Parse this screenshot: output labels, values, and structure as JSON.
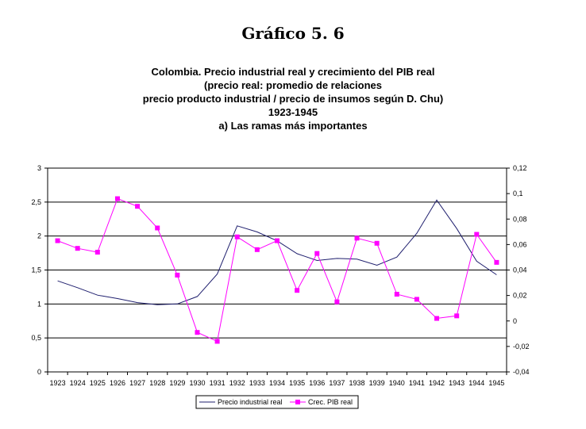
{
  "header": {
    "figure_title": "Gráfico 5. 6",
    "subtitle_lines": [
      "Colombia. Precio industrial real y crecimiento del PIB real",
      "(precio real: promedio de relaciones",
      "precio producto industrial / precio de insumos según D. Chu)",
      "1923-1945",
      "a) Las ramas más importantes"
    ]
  },
  "chart_data": {
    "type": "line",
    "x": [
      "1923",
      "1924",
      "1925",
      "1926",
      "1927",
      "1928",
      "1929",
      "1930",
      "1931",
      "1932",
      "1933",
      "1934",
      "1935",
      "1936",
      "1937",
      "1938",
      "1939",
      "1940",
      "1941",
      "1942",
      "1943",
      "1944",
      "1945"
    ],
    "y_left": {
      "ylim": [
        0,
        3
      ],
      "ticks": [
        "0",
        "0,5",
        "1",
        "1,5",
        "2",
        "2,5",
        "3"
      ],
      "tick_values": [
        0,
        0.5,
        1,
        1.5,
        2,
        2.5,
        3
      ]
    },
    "y_right": {
      "ylim": [
        -0.04,
        0.12
      ],
      "ticks": [
        "-0,04",
        "-0,02",
        "0",
        "0,02",
        "0,04",
        "0,06",
        "0,08",
        "0,1",
        "0,12"
      ],
      "tick_values": [
        -0.04,
        -0.02,
        0,
        0.02,
        0.04,
        0.06,
        0.08,
        0.1,
        0.12
      ]
    },
    "grid": "horizontal",
    "legend_position": "bottom",
    "series": [
      {
        "name": "Precio industrial real",
        "axis": "left",
        "color": "#1f1f6e",
        "marker": "none",
        "values": [
          1.34,
          1.24,
          1.13,
          1.08,
          1.02,
          0.99,
          1.0,
          1.11,
          1.44,
          2.15,
          2.06,
          1.93,
          1.74,
          1.64,
          1.67,
          1.66,
          1.57,
          1.69,
          2.04,
          2.53,
          2.11,
          1.63,
          1.43
        ]
      },
      {
        "name": "Crec. PIB real",
        "axis": "right",
        "color": "#ff00ff",
        "marker": "square",
        "values": [
          0.063,
          0.057,
          0.054,
          0.096,
          0.09,
          0.073,
          0.036,
          -0.009,
          -0.016,
          0.066,
          0.056,
          0.063,
          0.024,
          0.053,
          0.015,
          0.065,
          0.061,
          0.021,
          0.017,
          0.002,
          0.004,
          0.068,
          0.046
        ]
      }
    ]
  }
}
